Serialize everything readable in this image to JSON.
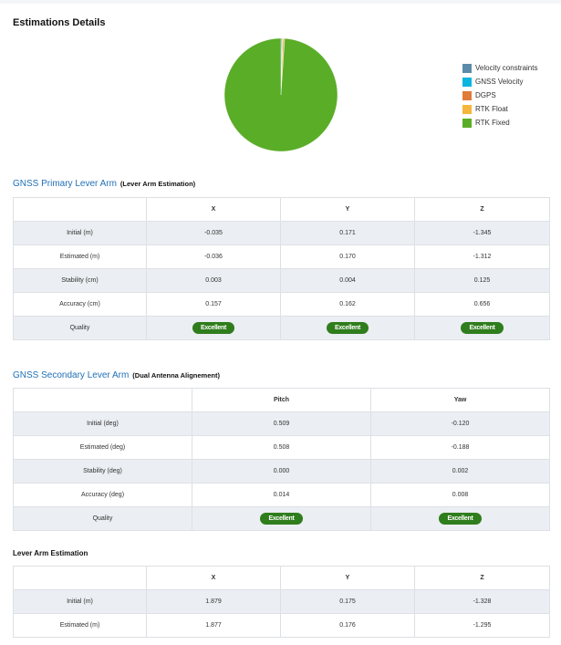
{
  "page_title": "Estimations Details",
  "chart_data": {
    "type": "pie",
    "title": "",
    "legend_position": "right",
    "slices": [
      {
        "label": "Velocity constraints",
        "value": 0.3,
        "color": "#5b8ba8"
      },
      {
        "label": "GNSS Velocity",
        "value": 0.2,
        "color": "#0bb5e0"
      },
      {
        "label": "DGPS",
        "value": 0.05,
        "color": "#e07b39"
      },
      {
        "label": "RTK Float",
        "value": 0.5,
        "color": "#f4b63c"
      },
      {
        "label": "RTK Fixed",
        "value": 98.95,
        "color": "#5aad27"
      }
    ]
  },
  "primary": {
    "title": "GNSS Primary Lever Arm",
    "subtitle": "(Lever Arm Estimation)",
    "headers": [
      "",
      "X",
      "Y",
      "Z"
    ],
    "rows": [
      [
        "Initial (m)",
        "-0.035",
        "0.171",
        "-1.345"
      ],
      [
        "Estimated (m)",
        "-0.036",
        "0.170",
        "-1.312"
      ],
      [
        "Stability (cm)",
        "0.003",
        "0.004",
        "0.125"
      ],
      [
        "Accuracy (cm)",
        "0.157",
        "0.162",
        "0.656"
      ]
    ],
    "quality_label": "Quality",
    "quality": [
      "Excellent",
      "Excellent",
      "Excellent"
    ]
  },
  "secondary": {
    "title": "GNSS Secondary Lever Arm",
    "subtitle": "(Dual Antenna Alignement)",
    "headers": [
      "",
      "Pitch",
      "Yaw"
    ],
    "rows": [
      [
        "Initial (deg)",
        "0.509",
        "-0.120"
      ],
      [
        "Estimated (deg)",
        "0.508",
        "-0.188"
      ],
      [
        "Stability (deg)",
        "0.000",
        "0.002"
      ],
      [
        "Accuracy (deg)",
        "0.014",
        "0.008"
      ]
    ],
    "quality_label": "Quality",
    "quality": [
      "Excellent",
      "Excellent"
    ]
  },
  "lever": {
    "title": "Lever Arm Estimation",
    "headers": [
      "",
      "X",
      "Y",
      "Z"
    ],
    "rows": [
      [
        "Initial (m)",
        "1.879",
        "0.175",
        "-1.328"
      ],
      [
        "Estimated (m)",
        "1.877",
        "0.176",
        "-1.295"
      ]
    ]
  }
}
